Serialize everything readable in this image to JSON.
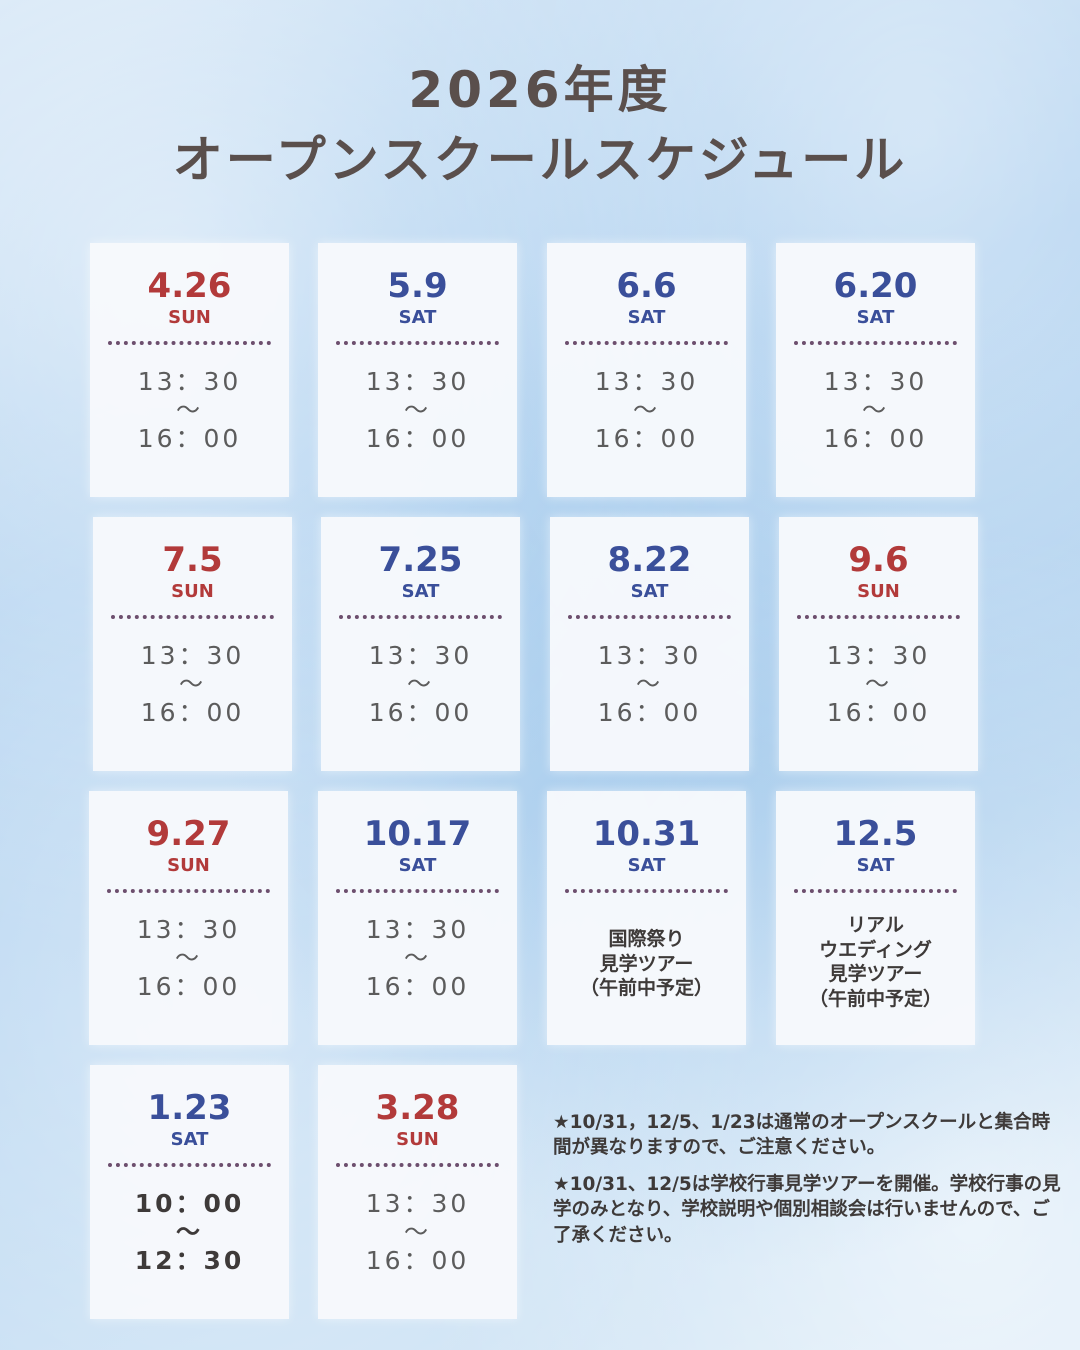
{
  "title": {
    "line1": "2026年度",
    "line2": "オープンスクールスケジュール"
  },
  "colors": {
    "sunday": "#b23a3a",
    "saturday": "#3a4f9a",
    "text": "#3e3a39"
  },
  "separator": "〜",
  "cards": [
    {
      "date": "4.26",
      "day": "SUN",
      "start": "13：30",
      "end": "16：00"
    },
    {
      "date": "5.9",
      "day": "SAT",
      "start": "13：30",
      "end": "16：00"
    },
    {
      "date": "6.6",
      "day": "SAT",
      "start": "13：30",
      "end": "16：00"
    },
    {
      "date": "6.20",
      "day": "SAT",
      "start": "13：30",
      "end": "16：00"
    },
    {
      "date": "7.5",
      "day": "SUN",
      "start": "13：30",
      "end": "16：00"
    },
    {
      "date": "7.25",
      "day": "SAT",
      "start": "13：30",
      "end": "16：00"
    },
    {
      "date": "8.22",
      "day": "SAT",
      "start": "13：30",
      "end": "16：00"
    },
    {
      "date": "9.6",
      "day": "SUN",
      "start": "13：30",
      "end": "16：00"
    },
    {
      "date": "9.27",
      "day": "SUN",
      "start": "13：30",
      "end": "16：00"
    },
    {
      "date": "10.17",
      "day": "SAT",
      "start": "13：30",
      "end": "16：00"
    },
    {
      "date": "10.31",
      "day": "SAT",
      "event": [
        "国際祭り",
        "見学ツアー",
        "（午前中予定）"
      ]
    },
    {
      "date": "12.5",
      "day": "SAT",
      "event": [
        "リアル",
        "ウエディング",
        "見学ツアー",
        "（午前中予定）"
      ]
    },
    {
      "date": "1.23",
      "day": "SAT",
      "start": "10：00",
      "end": "12：30"
    },
    {
      "date": "3.28",
      "day": "SUN",
      "start": "13：30",
      "end": "16：00"
    }
  ],
  "notes": [
    "★10/31，12/5、1/23は通常のオープンスクールと集合時間が異なりますので、ご注意ください。",
    "★10/31、12/5は学校行事見学ツアーを開催。学校行事の見学のみとなり、学校説明や個別相談会は行いませんので、ご了承ください。"
  ]
}
